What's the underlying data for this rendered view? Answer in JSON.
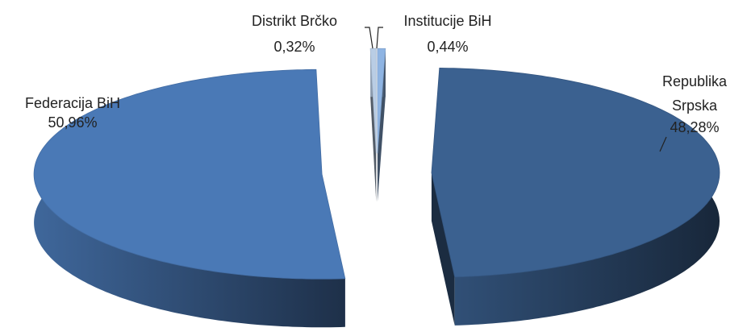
{
  "chart_data": {
    "type": "pie",
    "categories": [
      "Institucije BiH",
      "Republika Srpska",
      "Federacija BiH",
      "Distrikt Brčko"
    ],
    "values": [
      0.44,
      48.28,
      50.96,
      0.32
    ],
    "value_labels": [
      "0,44%",
      "48,28%",
      "50,96%",
      "0,32%"
    ],
    "colors": [
      "#8eb4e3",
      "#3b6190",
      "#4a79b6",
      "#b9cde5"
    ]
  }
}
